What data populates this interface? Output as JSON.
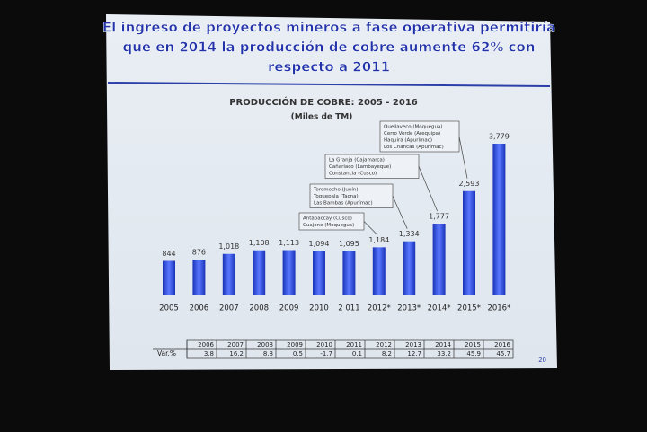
{
  "slide_title": [
    "El ingreso de proyectos mineros a fase operativa permitiría",
    "que en 2014 la producción de cobre aumente 62% con",
    "respecto a 2011"
  ],
  "chart_data": {
    "type": "bar",
    "title": "PRODUCCIÓN DE COBRE: 2005 - 2016",
    "subtitle": "(Miles de TM)",
    "categories": [
      "2005",
      "2006",
      "2007",
      "2008",
      "2009",
      "2010",
      "2 011",
      "2012*",
      "2013*",
      "2014*",
      "2015*",
      "2016*"
    ],
    "values": [
      844,
      876,
      1018,
      1108,
      1113,
      1094,
      1095,
      1184,
      1334,
      1777,
      2593,
      3779
    ],
    "value_labels": [
      "844",
      "876",
      "1,018",
      "1,108",
      "1,113",
      "1,094",
      "1,095",
      "1,184",
      "1,334",
      "1,777",
      "2,593",
      "3,779"
    ],
    "color": "#2f4fd8",
    "annotations": [
      [
        "Antapaccay (Cusco)",
        "Cuajone (Moquegua)"
      ],
      [
        "Toromocho (Junín)",
        "Toquepala (Tacna)",
        "Las Bambas (Apurímac)"
      ],
      [
        "La Granja (Cajamarca)",
        "Cañariaco (Lambayeque)",
        "Constancia (Cusco)"
      ],
      [
        "Quellaveco (Moquegua)",
        "Cerro Verde (Arequipa)",
        "Haquira (Apurímac)",
        "Los Chancas (Apurímac)"
      ]
    ]
  },
  "table": {
    "header": [
      2006,
      2007,
      2008,
      2009,
      2010,
      2011,
      2012,
      2013,
      2014,
      2015,
      2016
    ],
    "row_label": "Var.%",
    "row": [
      3.8,
      16.2,
      8.8,
      0.5,
      -1.7,
      0.1,
      8.2,
      12.7,
      33.2,
      45.9,
      45.7
    ]
  },
  "page_number": "20"
}
